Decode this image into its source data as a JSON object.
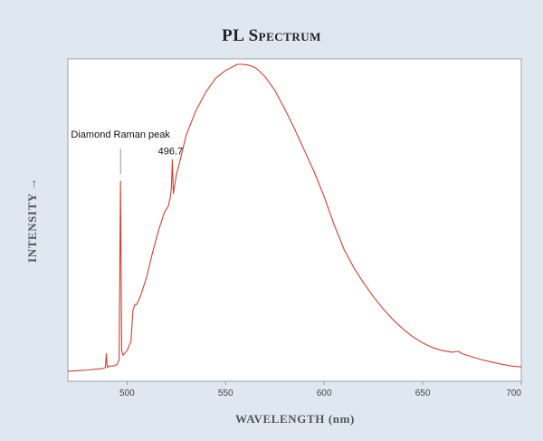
{
  "chart_data": {
    "type": "line",
    "title": "PL Spectrum",
    "xlabel": "WAVELENGTH (nm)",
    "ylabel": "INTENSITY →",
    "xlim": [
      470,
      700
    ],
    "ylim": [
      0,
      1
    ],
    "xticks": [
      500,
      550,
      600,
      650,
      700
    ],
    "grid": false,
    "series": [
      {
        "color": "#d2402e",
        "x": [
          470,
          475,
          480,
          485,
          488,
          489,
          489.5,
          490,
          491,
          493,
          495,
          496,
          496.7,
          497.3,
          498,
          500,
          502,
          503,
          504,
          505,
          507,
          510,
          513,
          516,
          519,
          521,
          522,
          522.5,
          523,
          523.5,
          524,
          525,
          527,
          530,
          535,
          540,
          545,
          550,
          553,
          556,
          558,
          560,
          563,
          566,
          570,
          575,
          580,
          585,
          590,
          595,
          600,
          605,
          610,
          615,
          620,
          625,
          630,
          635,
          640,
          645,
          650,
          655,
          660,
          665,
          668,
          670,
          675,
          680,
          685,
          690,
          695,
          700
        ],
        "y": [
          0.003,
          0.005,
          0.007,
          0.01,
          0.012,
          0.015,
          0.06,
          0.015,
          0.02,
          0.02,
          0.025,
          0.04,
          0.62,
          0.07,
          0.055,
          0.07,
          0.1,
          0.2,
          0.22,
          0.22,
          0.25,
          0.31,
          0.39,
          0.46,
          0.52,
          0.54,
          0.57,
          0.6,
          0.69,
          0.58,
          0.6,
          0.64,
          0.69,
          0.77,
          0.85,
          0.91,
          0.955,
          0.98,
          0.99,
          1.0,
          1.0,
          0.999,
          0.995,
          0.985,
          0.96,
          0.915,
          0.855,
          0.79,
          0.72,
          0.65,
          0.57,
          0.48,
          0.4,
          0.34,
          0.29,
          0.245,
          0.205,
          0.17,
          0.14,
          0.115,
          0.095,
          0.08,
          0.07,
          0.065,
          0.068,
          0.06,
          0.05,
          0.04,
          0.033,
          0.026,
          0.02,
          0.017
        ]
      }
    ],
    "annotations": [
      {
        "text": "Diamond Raman peak",
        "x": 496.7,
        "y": 0.62,
        "leader": true
      },
      {
        "text": "496.7",
        "x": 523,
        "y": 0.69,
        "leader": false
      }
    ]
  }
}
